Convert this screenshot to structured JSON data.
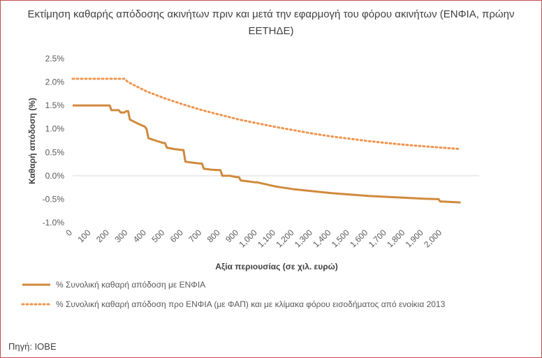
{
  "chart_data": {
    "type": "line",
    "title": "Εκτίμηση καθαρής απόδοσης ακινήτων πριν και μετά την εφαρμογή του φόρου ακινήτων (ΕΝΦΙΑ, πρώην ΕΕΤΗΔΕ)",
    "xlabel": "Αξία περιουσίας (σε χιλ. ευρώ)",
    "ylabel": "Καθαρή απόδοση (%)",
    "ylim": [
      -1.0,
      2.5
    ],
    "y_ticks": [
      "2.5%",
      "2.0%",
      "1.5%",
      "1.0%",
      "0.5%",
      "0.0%",
      "-0.5%",
      "-1.0%"
    ],
    "y_tick_values": [
      2.5,
      2.0,
      1.5,
      1.0,
      0.5,
      0.0,
      -0.5,
      -1.0
    ],
    "x_ticks": [
      "0",
      "100",
      "200",
      "300",
      "400",
      "500",
      "600",
      "700",
      "800",
      "900",
      "1,000",
      "1,100",
      "1,200",
      "1,300",
      "1,400",
      "1,500",
      "1,600",
      "1,700",
      "1,800",
      "1,900",
      "2,000"
    ],
    "x_tick_values": [
      0,
      100,
      200,
      300,
      400,
      500,
      600,
      700,
      800,
      900,
      1000,
      1100,
      1200,
      1300,
      1400,
      1500,
      1600,
      1700,
      1800,
      1900,
      2000
    ],
    "xlim": [
      0,
      2200
    ],
    "grid": "horizontal",
    "legend_position": "bottom",
    "series": [
      {
        "name": "% Συνολική καθαρή απόδοση με ΕΝΦΙΑ",
        "style": "solid",
        "color": "#d08a3c",
        "x": [
          0,
          200,
          210,
          250,
          260,
          280,
          290,
          300,
          310,
          350,
          390,
          400,
          410,
          450,
          490,
          500,
          510,
          550,
          590,
          600,
          610,
          650,
          690,
          700,
          710,
          750,
          790,
          800,
          810,
          850,
          890,
          900,
          910,
          950,
          990,
          1000,
          1100,
          1200,
          1300,
          1400,
          1500,
          1600,
          1700,
          1800,
          1900,
          1980,
          1990,
          2000,
          2100
        ],
        "y": [
          1.5,
          1.5,
          1.4,
          1.4,
          1.35,
          1.35,
          1.38,
          1.38,
          1.2,
          1.12,
          1.05,
          1.0,
          0.8,
          0.75,
          0.7,
          0.7,
          0.6,
          0.57,
          0.55,
          0.55,
          0.3,
          0.28,
          0.26,
          0.26,
          0.15,
          0.13,
          0.12,
          0.12,
          0.0,
          0.0,
          -0.03,
          -0.03,
          -0.1,
          -0.12,
          -0.14,
          -0.14,
          -0.23,
          -0.29,
          -0.33,
          -0.37,
          -0.4,
          -0.43,
          -0.45,
          -0.47,
          -0.49,
          -0.5,
          -0.55,
          -0.55,
          -0.57
        ]
      },
      {
        "name": "% Συνολική καθαρή απόδοση προ ΕΝΦΙΑ (με ΦΑΠ) και με κλίμακα φόρου εισοδήματος από ενοίκια 2013",
        "style": "dotted",
        "color": "#f0944d",
        "x": [
          0,
          100,
          200,
          280,
          300,
          400,
          500,
          600,
          700,
          800,
          900,
          1000,
          1100,
          1200,
          1300,
          1400,
          1500,
          1600,
          1700,
          1800,
          1900,
          2000,
          2100
        ],
        "y": [
          2.07,
          2.07,
          2.07,
          2.07,
          2.0,
          1.8,
          1.65,
          1.52,
          1.4,
          1.3,
          1.2,
          1.12,
          1.04,
          0.97,
          0.9,
          0.84,
          0.79,
          0.74,
          0.7,
          0.66,
          0.63,
          0.6,
          0.57
        ]
      }
    ]
  },
  "source": "Πηγή: ΙΟΒΕ"
}
